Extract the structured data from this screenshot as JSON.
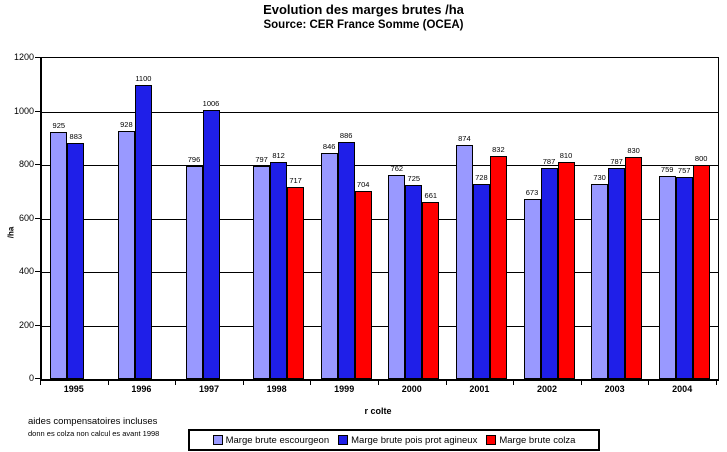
{
  "title": "Evolution des marges brutes /ha",
  "subtitle": "Source: CER France Somme (OCEA)",
  "notes": {
    "line1": "aides compensatoires incluses",
    "line2": "donn es colza non calcul es avant 1998"
  },
  "chart_data": {
    "type": "bar",
    "title": "Evolution des marges brutes /ha",
    "subtitle": "Source: CER France Somme (OCEA)",
    "categories": [
      "1995",
      "1996",
      "1997",
      "1998",
      "1999",
      "2000",
      "2001",
      "2002",
      "2003",
      "2004"
    ],
    "series": [
      {
        "name": "Marge brute escourgeon",
        "color": "#9999FF",
        "values": [
          925,
          928,
          796,
          797,
          846,
          762,
          874,
          673,
          730,
          759
        ]
      },
      {
        "name": "Marge brute pois prot agineux",
        "color": "#1F1FE8",
        "values": [
          883,
          1100,
          1006,
          812,
          886,
          725,
          728,
          787,
          787,
          757
        ]
      },
      {
        "name": "Marge brute colza",
        "color": "#FF0000",
        "values": [
          null,
          null,
          null,
          717,
          704,
          661,
          832,
          810,
          830,
          800
        ]
      }
    ],
    "xlabel": "r colte",
    "ylabel": "/ha",
    "ylim": [
      0,
      1200
    ],
    "yticks": [
      0,
      200,
      400,
      600,
      800,
      1000,
      1200
    ],
    "grid": true,
    "legend_position": "bottom",
    "bar_value_labels": true
  }
}
